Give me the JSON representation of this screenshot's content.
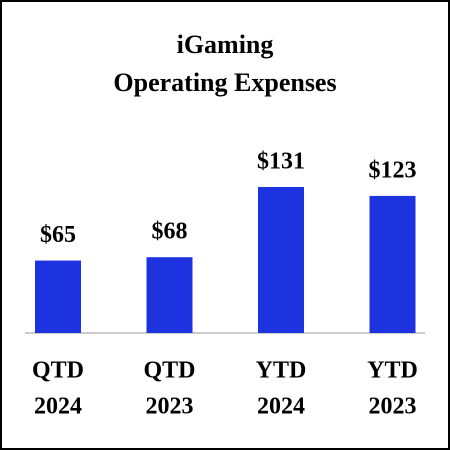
{
  "chart_data": {
    "type": "bar",
    "title": [
      "iGaming",
      "Operating Expenses"
    ],
    "categories": [
      [
        "QTD",
        "2024"
      ],
      [
        "QTD",
        "2023"
      ],
      [
        "YTD",
        "2024"
      ],
      [
        "YTD",
        "2023"
      ]
    ],
    "values": [
      65,
      68,
      131,
      123
    ],
    "value_labels": [
      "$65",
      "$68",
      "$131",
      "$123"
    ],
    "color": "#1c33df"
  }
}
